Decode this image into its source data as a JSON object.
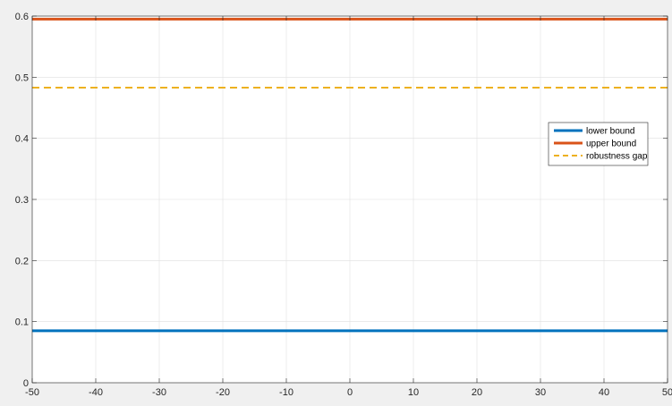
{
  "chart_data": {
    "type": "line",
    "title": "",
    "xlabel": "",
    "ylabel": "",
    "xlim": [
      -50,
      50
    ],
    "ylim": [
      0,
      0.6
    ],
    "xticks": [
      "-50",
      "-40",
      "-30",
      "-20",
      "-10",
      "0",
      "10",
      "20",
      "30",
      "40",
      "50"
    ],
    "yticks": [
      "0",
      "0.1",
      "0.2",
      "0.3",
      "0.4",
      "0.5",
      "0.6"
    ],
    "grid": true,
    "legend_position": "right",
    "series": [
      {
        "name": "lower bound",
        "x": [
          -50,
          50
        ],
        "y": [
          0.085,
          0.085
        ],
        "color": "#0072BD",
        "dash": "solid"
      },
      {
        "name": "upper bound",
        "x": [
          -50,
          50
        ],
        "y": [
          0.595,
          0.595
        ],
        "color": "#D95319",
        "dash": "solid"
      },
      {
        "name": "robustness gap",
        "x": [
          -50,
          50
        ],
        "y": [
          0.483,
          0.483
        ],
        "color": "#EDB120",
        "dash": "dashed"
      }
    ]
  }
}
